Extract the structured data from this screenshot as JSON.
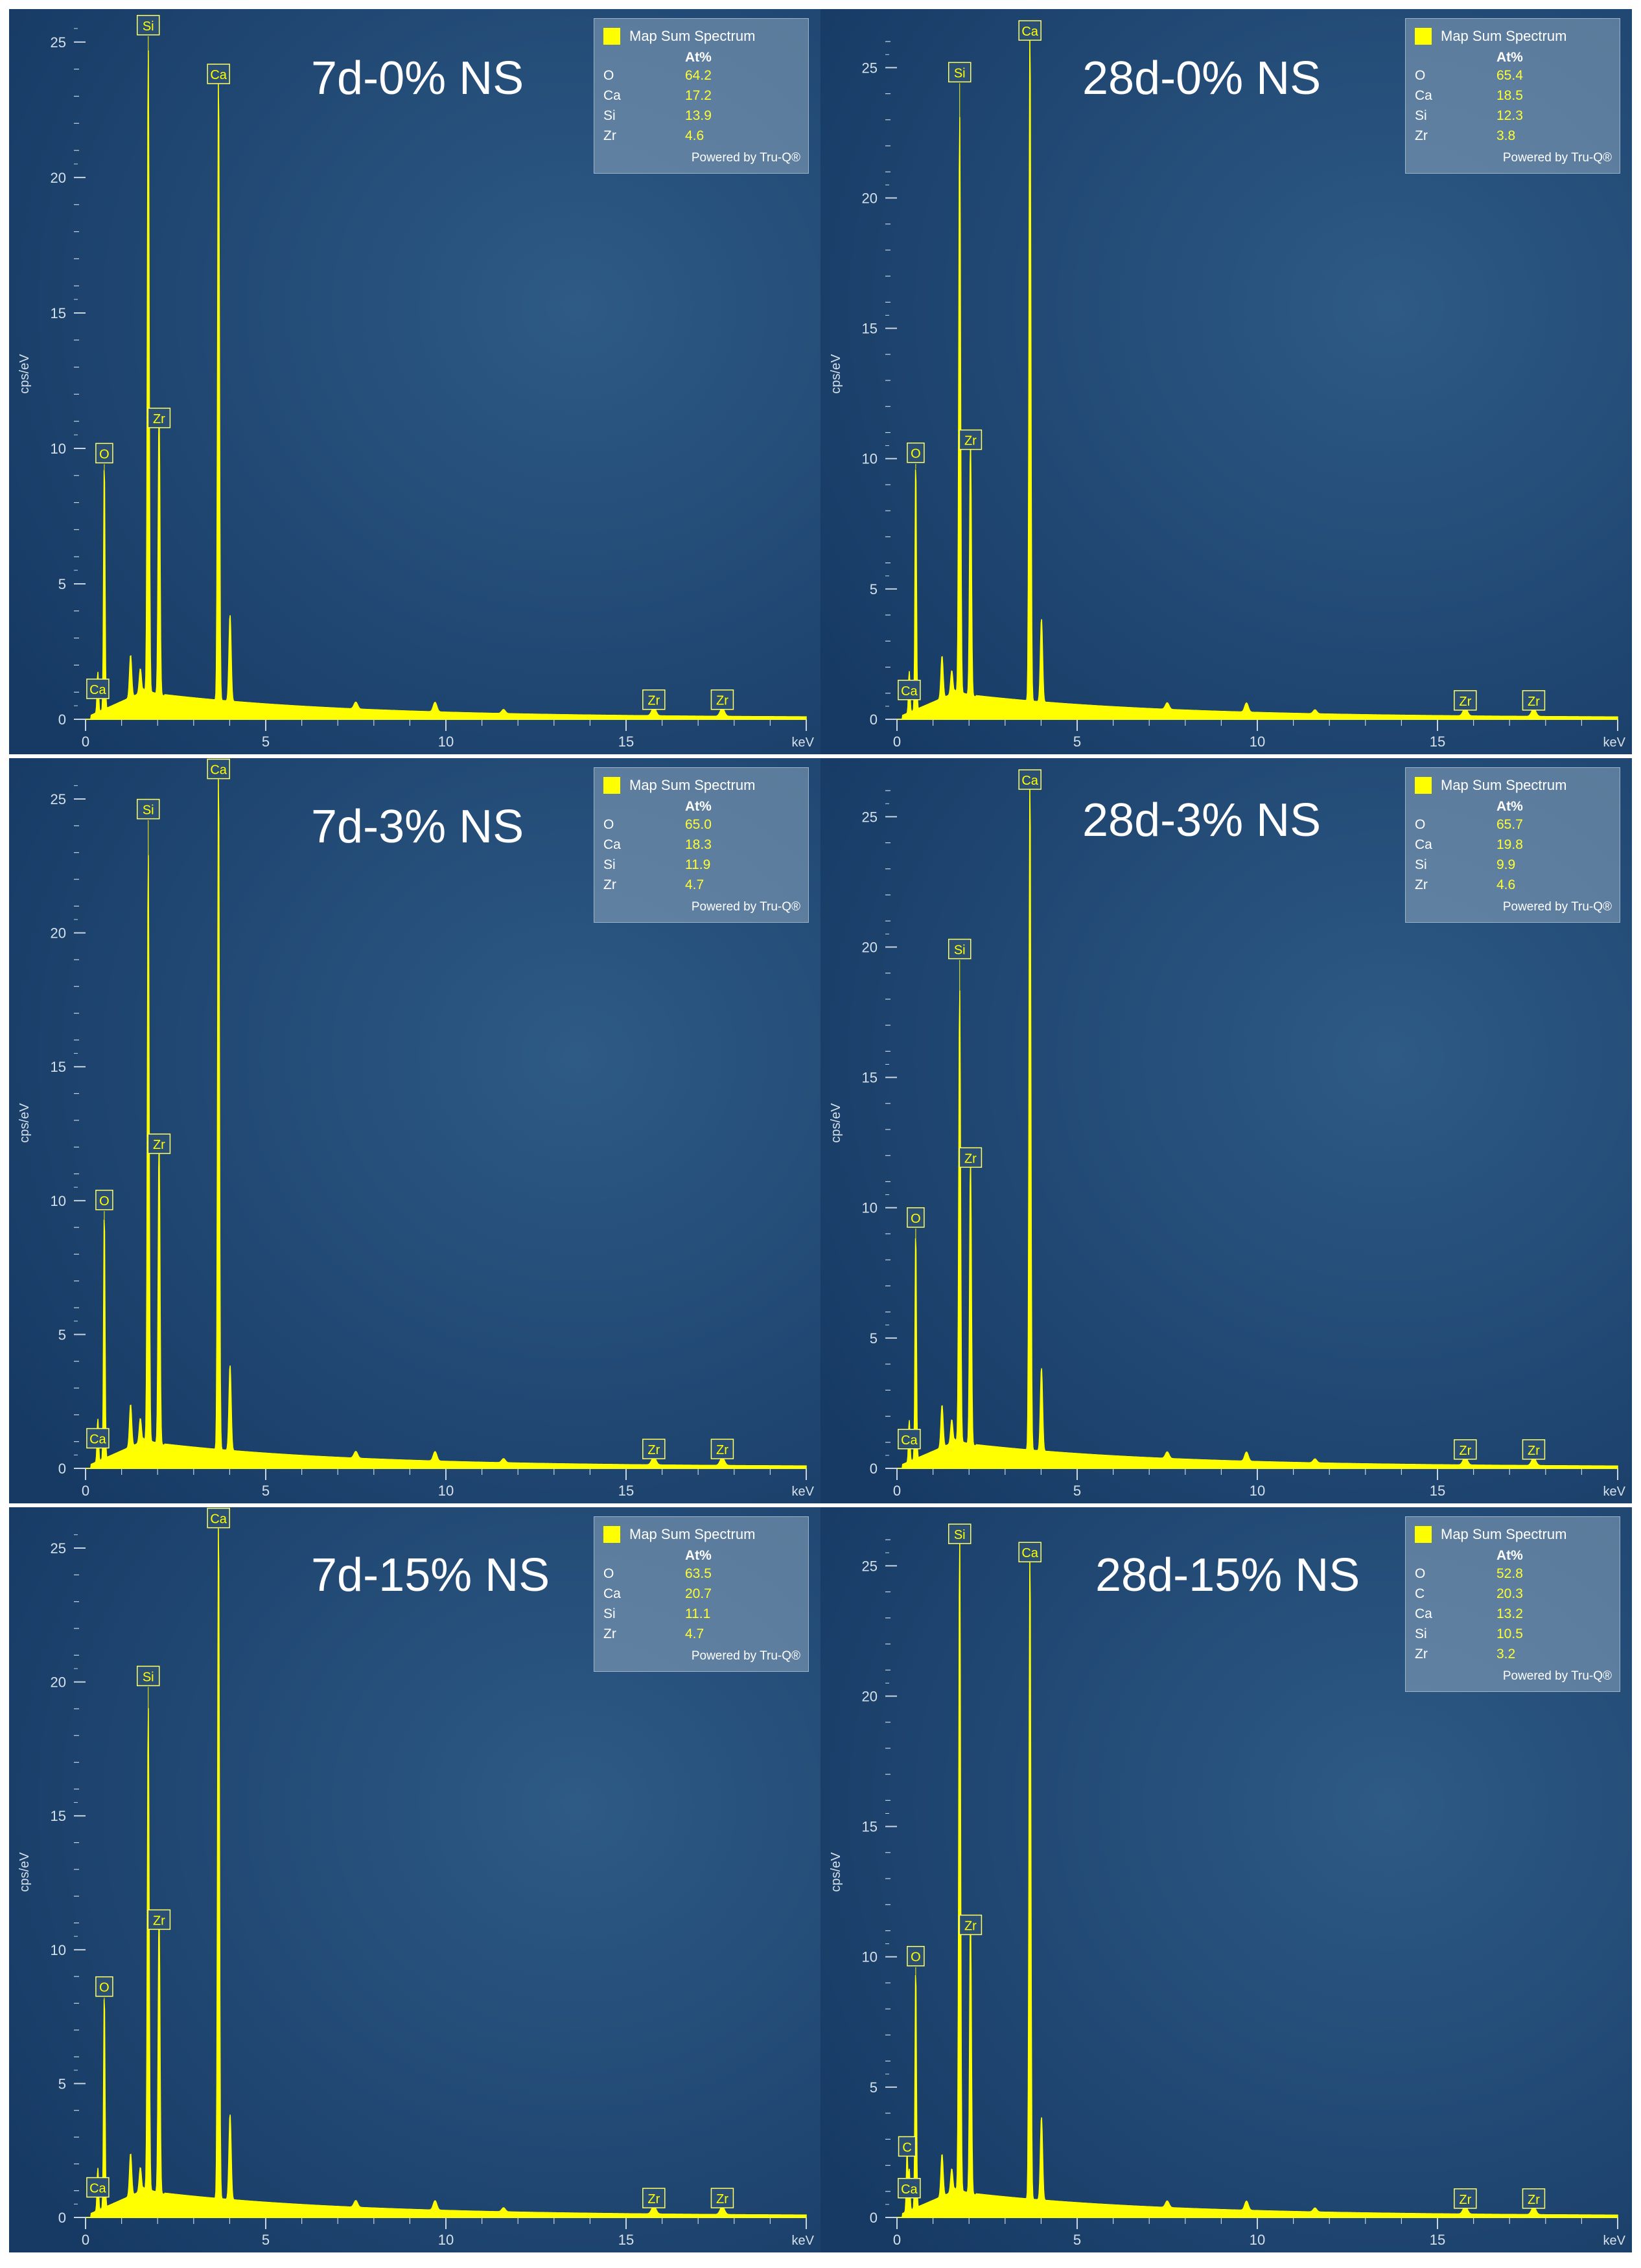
{
  "chart_data": [
    {
      "type": "line",
      "title": "7d-0% NS",
      "ylabel": "cps/eV",
      "xlabel": "keV",
      "xlim": [
        0,
        20
      ],
      "ylim": [
        0,
        25.5
      ],
      "xticks": [
        "0",
        "5",
        "10",
        "15"
      ],
      "yticks": [
        "0",
        "5",
        "10",
        "15",
        "20",
        "25"
      ],
      "peaks": [
        {
          "element": "Ca",
          "energy": 0.34,
          "height": 1.5,
          "label_y": 1.1
        },
        {
          "element": "O",
          "energy": 0.52,
          "height": 9.2,
          "label_y": 9.8
        },
        {
          "element": "Si",
          "energy": 1.74,
          "height": 23.8,
          "label_y": 25.6
        },
        {
          "element": "Zr",
          "energy": 2.04,
          "height": 10.6,
          "label_y": 11.1
        },
        {
          "element": "Ca",
          "energy": 3.69,
          "height": 23.1,
          "label_y": 23.8
        },
        {
          "element": "Zr",
          "energy": 15.77,
          "height": 0.3,
          "label_y": 0.7
        },
        {
          "element": "Zr",
          "energy": 17.67,
          "height": 0.3,
          "label_y": 0.7
        }
      ],
      "legend": {
        "title": "Map Sum Spectrum",
        "column": "At%",
        "rows": [
          {
            "element": "O",
            "value": "64.2"
          },
          {
            "element": "Ca",
            "value": "17.2"
          },
          {
            "element": "Si",
            "value": "13.9"
          },
          {
            "element": "Zr",
            "value": "4.6"
          }
        ],
        "footer": "Powered by Tru-Q®"
      }
    },
    {
      "type": "line",
      "title": "28d-0% NS",
      "ylabel": "cps/eV",
      "xlabel": "keV",
      "xlim": [
        0,
        20
      ],
      "ylim": [
        0,
        26.5
      ],
      "xticks": [
        "0",
        "5",
        "10",
        "15"
      ],
      "yticks": [
        "0",
        "5",
        "10",
        "15",
        "20",
        "25"
      ],
      "peaks": [
        {
          "element": "Ca",
          "energy": 0.34,
          "height": 1.6,
          "label_y": 1.1
        },
        {
          "element": "O",
          "energy": 0.52,
          "height": 9.6,
          "label_y": 10.2
        },
        {
          "element": "Si",
          "energy": 1.74,
          "height": 22.2,
          "label_y": 24.8
        },
        {
          "element": "Zr",
          "energy": 2.04,
          "height": 9.8,
          "label_y": 10.7
        },
        {
          "element": "Ca",
          "energy": 3.69,
          "height": 25.9,
          "label_y": 26.4
        },
        {
          "element": "Zr",
          "energy": 15.77,
          "height": 0.3,
          "label_y": 0.7
        },
        {
          "element": "Zr",
          "energy": 17.67,
          "height": 0.3,
          "label_y": 0.7
        }
      ],
      "legend": {
        "title": "Map Sum Spectrum",
        "column": "At%",
        "rows": [
          {
            "element": "O",
            "value": "65.4"
          },
          {
            "element": "Ca",
            "value": "18.5"
          },
          {
            "element": "Si",
            "value": "12.3"
          },
          {
            "element": "Zr",
            "value": "3.8"
          }
        ],
        "footer": "Powered by Tru-Q®"
      }
    },
    {
      "type": "line",
      "title": "7d-3% NS",
      "ylabel": "cps/eV",
      "xlabel": "keV",
      "xlim": [
        0,
        20
      ],
      "ylim": [
        0,
        25.8
      ],
      "xticks": [
        "0",
        "5",
        "10",
        "15"
      ],
      "yticks": [
        "0",
        "5",
        "10",
        "15",
        "20",
        "25"
      ],
      "peaks": [
        {
          "element": "Ca",
          "energy": 0.34,
          "height": 1.6,
          "label_y": 1.1
        },
        {
          "element": "O",
          "energy": 0.52,
          "height": 9.3,
          "label_y": 10.0
        },
        {
          "element": "Si",
          "energy": 1.74,
          "height": 22.0,
          "label_y": 24.6
        },
        {
          "element": "Zr",
          "energy": 2.04,
          "height": 11.4,
          "label_y": 12.1
        },
        {
          "element": "Ca",
          "energy": 3.69,
          "height": 25.4,
          "label_y": 26.1
        },
        {
          "element": "Zr",
          "energy": 15.77,
          "height": 0.3,
          "label_y": 0.7
        },
        {
          "element": "Zr",
          "energy": 17.67,
          "height": 0.3,
          "label_y": 0.7
        }
      ],
      "legend": {
        "title": "Map Sum Spectrum",
        "column": "At%",
        "rows": [
          {
            "element": "O",
            "value": "65.0"
          },
          {
            "element": "Ca",
            "value": "18.3"
          },
          {
            "element": "Si",
            "value": "11.9"
          },
          {
            "element": "Zr",
            "value": "4.7"
          }
        ],
        "footer": "Powered by Tru-Q®"
      }
    },
    {
      "type": "line",
      "title": "28d-3% NS",
      "ylabel": "cps/eV",
      "xlabel": "keV",
      "xlim": [
        0,
        20
      ],
      "ylim": [
        0,
        26.5
      ],
      "xticks": [
        "0",
        "5",
        "10",
        "15"
      ],
      "yticks": [
        "0",
        "5",
        "10",
        "15",
        "20",
        "25"
      ],
      "peaks": [
        {
          "element": "Ca",
          "energy": 0.34,
          "height": 1.6,
          "label_y": 1.1
        },
        {
          "element": "O",
          "energy": 0.52,
          "height": 8.8,
          "label_y": 9.6
        },
        {
          "element": "Si",
          "energy": 1.74,
          "height": 17.4,
          "label_y": 19.9
        },
        {
          "element": "Zr",
          "energy": 2.04,
          "height": 11.0,
          "label_y": 11.9
        },
        {
          "element": "Ca",
          "energy": 3.69,
          "height": 25.9,
          "label_y": 26.4
        },
        {
          "element": "Zr",
          "energy": 15.77,
          "height": 0.3,
          "label_y": 0.7
        },
        {
          "element": "Zr",
          "energy": 17.67,
          "height": 0.3,
          "label_y": 0.7
        }
      ],
      "legend": {
        "title": "Map Sum Spectrum",
        "column": "At%",
        "rows": [
          {
            "element": "O",
            "value": "65.7"
          },
          {
            "element": "Ca",
            "value": "19.8"
          },
          {
            "element": "Si",
            "value": "9.9"
          },
          {
            "element": "Zr",
            "value": "4.6"
          }
        ],
        "footer": "Powered by Tru-Q®"
      }
    },
    {
      "type": "line",
      "title": "7d-15% NS",
      "ylabel": "cps/eV",
      "xlabel": "keV",
      "xlim": [
        0,
        20
      ],
      "ylim": [
        0,
        25.8
      ],
      "xticks": [
        "0",
        "5",
        "10",
        "15"
      ],
      "yticks": [
        "0",
        "5",
        "10",
        "15",
        "20",
        "25"
      ],
      "peaks": [
        {
          "element": "Ca",
          "energy": 0.34,
          "height": 1.6,
          "label_y": 1.1
        },
        {
          "element": "O",
          "energy": 0.52,
          "height": 8.1,
          "label_y": 8.6
        },
        {
          "element": "Si",
          "energy": 1.74,
          "height": 18.1,
          "label_y": 20.2
        },
        {
          "element": "Zr",
          "energy": 2.04,
          "height": 10.6,
          "label_y": 11.1
        },
        {
          "element": "Ca",
          "energy": 3.69,
          "height": 25.4,
          "label_y": 26.1
        },
        {
          "element": "Zr",
          "energy": 15.77,
          "height": 0.3,
          "label_y": 0.7
        },
        {
          "element": "Zr",
          "energy": 17.67,
          "height": 0.3,
          "label_y": 0.7
        }
      ],
      "legend": {
        "title": "Map Sum Spectrum",
        "column": "At%",
        "rows": [
          {
            "element": "O",
            "value": "63.5"
          },
          {
            "element": "Ca",
            "value": "20.7"
          },
          {
            "element": "Si",
            "value": "11.1"
          },
          {
            "element": "Zr",
            "value": "4.7"
          }
        ],
        "footer": "Powered by Tru-Q®"
      }
    },
    {
      "type": "line",
      "title": "28d-15% NS",
      "ylabel": "cps/eV",
      "xlabel": "keV",
      "xlim": [
        0,
        20
      ],
      "ylim": [
        0,
        26.5
      ],
      "xticks": [
        "0",
        "5",
        "10",
        "15"
      ],
      "yticks": [
        "0",
        "5",
        "10",
        "15",
        "20",
        "25"
      ],
      "peaks": [
        {
          "element": "Ca",
          "energy": 0.34,
          "height": 1.6,
          "label_y": 1.1
        },
        {
          "element": "C",
          "energy": 0.28,
          "height": 2.3,
          "label_y": 2.7
        },
        {
          "element": "O",
          "energy": 0.52,
          "height": 9.3,
          "label_y": 10.0
        },
        {
          "element": "Si",
          "energy": 1.74,
          "height": 25.3,
          "label_y": 26.2
        },
        {
          "element": "Zr",
          "energy": 2.04,
          "height": 10.7,
          "label_y": 11.2
        },
        {
          "element": "Ca",
          "energy": 3.69,
          "height": 24.9,
          "label_y": 25.5
        },
        {
          "element": "Zr",
          "energy": 15.77,
          "height": 0.3,
          "label_y": 0.7
        },
        {
          "element": "Zr",
          "energy": 17.67,
          "height": 0.3,
          "label_y": 0.7
        }
      ],
      "legend": {
        "title": "Map Sum Spectrum",
        "column": "At%",
        "rows": [
          {
            "element": "O",
            "value": "52.8"
          },
          {
            "element": "C",
            "value": "20.3"
          },
          {
            "element": "Ca",
            "value": "13.2"
          },
          {
            "element": "Si",
            "value": "10.5"
          },
          {
            "element": "Zr",
            "value": "3.2"
          }
        ],
        "footer": "Powered by Tru-Q®"
      }
    }
  ]
}
